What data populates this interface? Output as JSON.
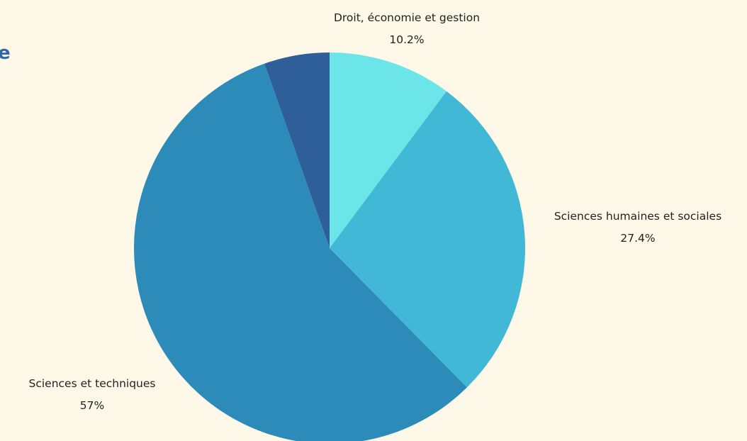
{
  "page": {
    "title_fragment": "e"
  },
  "chart_data": {
    "type": "pie",
    "title": "",
    "slices": [
      {
        "label": "Droit, économie et gestion",
        "value": 10.2,
        "value_label": "10.2%",
        "color": "#6ce5e8",
        "label_side": "top"
      },
      {
        "label": "Sciences humaines et sociales",
        "value": 27.4,
        "value_label": "27.4%",
        "color": "#41b8d5",
        "label_side": "right"
      },
      {
        "label": "Sciences et techniques",
        "value": 57,
        "value_label": "57%",
        "color": "#2d8bba",
        "label_side": "left"
      },
      {
        "label": "",
        "value": 5.4,
        "value_label": "",
        "color": "#2f5f98",
        "label_side": "none"
      }
    ],
    "start_angle_deg": 0,
    "direction": "clockwise",
    "legend": "none"
  }
}
